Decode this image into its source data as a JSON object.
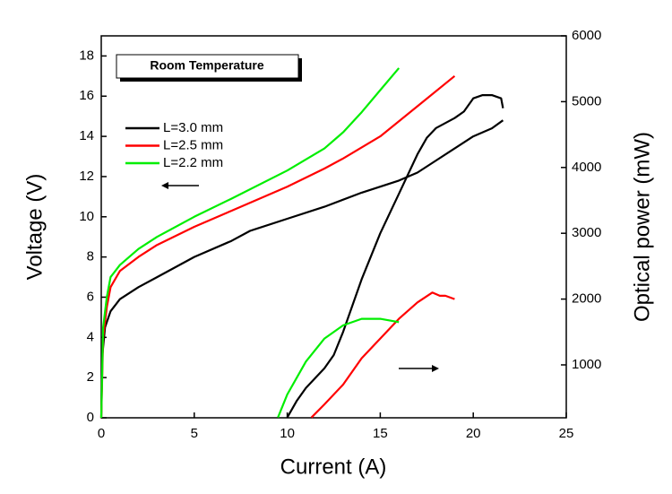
{
  "chart_data": {
    "type": "line",
    "x_label": "Current (A)",
    "y_label": "Voltage (V)",
    "y2_label": "Optical power (mW)",
    "annotation": "Room Temperature",
    "xlim": [
      0,
      25
    ],
    "xticks": [
      0,
      5,
      10,
      15,
      20,
      25
    ],
    "ylim": [
      0,
      19
    ],
    "yticks": [
      0,
      2,
      4,
      6,
      8,
      10,
      12,
      14,
      16,
      18
    ],
    "y2lim": [
      196,
      6000
    ],
    "y2ticks": [
      1000,
      2000,
      3000,
      4000,
      5000,
      6000
    ],
    "series": [
      {
        "name": "L=3.0 mm",
        "color": "#000000",
        "x": [
          0,
          0.05,
          0.2,
          0.5,
          1,
          2,
          3,
          5,
          7,
          8,
          10,
          12,
          14,
          16,
          17,
          18,
          19,
          20,
          21,
          21.6
        ],
        "values": [
          0,
          3,
          4.5,
          5.3,
          5.9,
          6.5,
          7,
          8,
          8.8,
          9.3,
          9.9,
          10.5,
          11.2,
          11.8,
          12.2,
          12.8,
          13.4,
          14,
          14.4,
          14.8
        ]
      },
      {
        "name": "L=2.5 mm",
        "color": "#ff0000",
        "x": [
          0,
          0.1,
          0.3,
          0.5,
          1,
          2,
          3,
          5,
          7,
          10,
          12,
          13,
          15,
          17,
          19
        ],
        "values": [
          0,
          4,
          5.5,
          6.5,
          7.3,
          8,
          8.6,
          9.5,
          10.3,
          11.5,
          12.4,
          12.9,
          14,
          15.5,
          17
        ]
      },
      {
        "name": "L=2.2 mm",
        "color": "#00ee00",
        "x": [
          0,
          0.1,
          0.3,
          0.5,
          1,
          2,
          3,
          5,
          7,
          10,
          12,
          13,
          14,
          15,
          16
        ],
        "values": [
          0,
          4.5,
          6,
          7,
          7.6,
          8.4,
          9,
          10,
          10.9,
          12.3,
          13.4,
          14.2,
          15.2,
          16.3,
          17.4
        ]
      },
      {
        "color": "#000000",
        "axis": "y2",
        "x": [
          10,
          10.5,
          11,
          12,
          12.5,
          13,
          14,
          15,
          16,
          17,
          17.5,
          18,
          19,
          19.5,
          20,
          20.5,
          21,
          21.5,
          21.6
        ],
        "values": [
          200,
          450,
          650,
          950,
          1150,
          1500,
          2300,
          3000,
          3600,
          4200,
          4450,
          4600,
          4750,
          4850,
          5050,
          5100,
          5100,
          5050,
          4900
        ]
      },
      {
        "color": "#ff0000",
        "axis": "y2",
        "x": [
          11.3,
          12,
          13,
          14,
          15,
          16,
          17,
          17.8,
          18.2,
          18.5,
          19
        ],
        "values": [
          200,
          400,
          700,
          1100,
          1400,
          1700,
          1950,
          2100,
          2050,
          2050,
          2000
        ]
      },
      {
        "color": "#00ee00",
        "axis": "y2",
        "x": [
          9.5,
          10,
          11,
          12,
          13,
          14,
          15,
          16
        ],
        "values": [
          200,
          550,
          1050,
          1400,
          1600,
          1700,
          1700,
          1650
        ]
      }
    ]
  }
}
